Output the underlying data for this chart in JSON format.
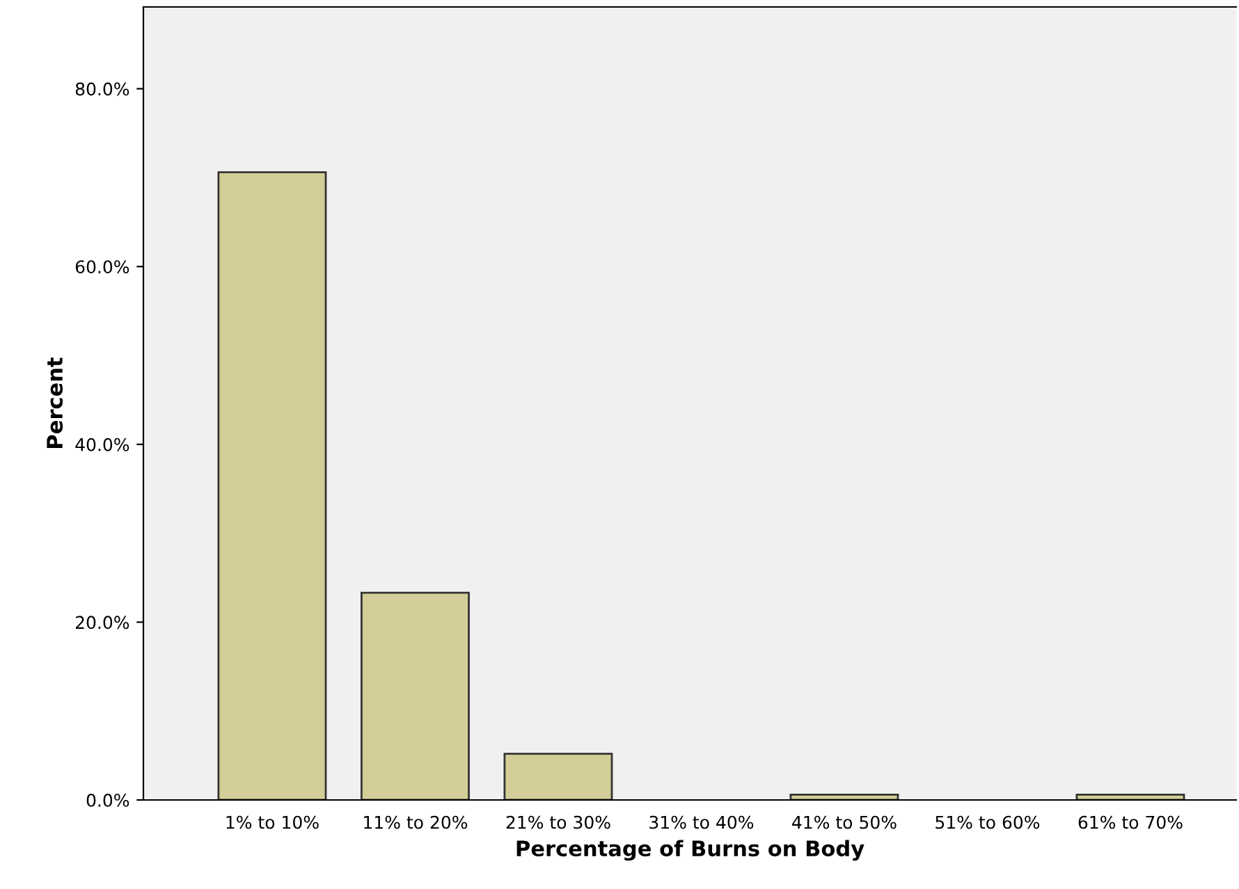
{
  "chart_data": {
    "type": "bar",
    "xlabel": "Percentage of Burns on Body",
    "ylabel": "Percent",
    "categories": [
      "1% to 10%",
      "11% to 20%",
      "21% to 30%",
      "31% to 40%",
      "41% to 50%",
      "51% to 60%",
      "61% to 70%"
    ],
    "values": [
      70.6,
      23.3,
      5.2,
      0,
      0.6,
      0,
      0.6
    ],
    "color": "#d3ce97",
    "ylim": [
      0,
      89.2
    ],
    "yticks": [
      {
        "value": 0,
        "label": "0.0%"
      },
      {
        "value": 20,
        "label": "20.0%"
      },
      {
        "value": 40,
        "label": "40.0%"
      },
      {
        "value": 60,
        "label": "60.0%"
      },
      {
        "value": 80,
        "label": "80.0%"
      }
    ],
    "grid": false,
    "legend": false
  }
}
